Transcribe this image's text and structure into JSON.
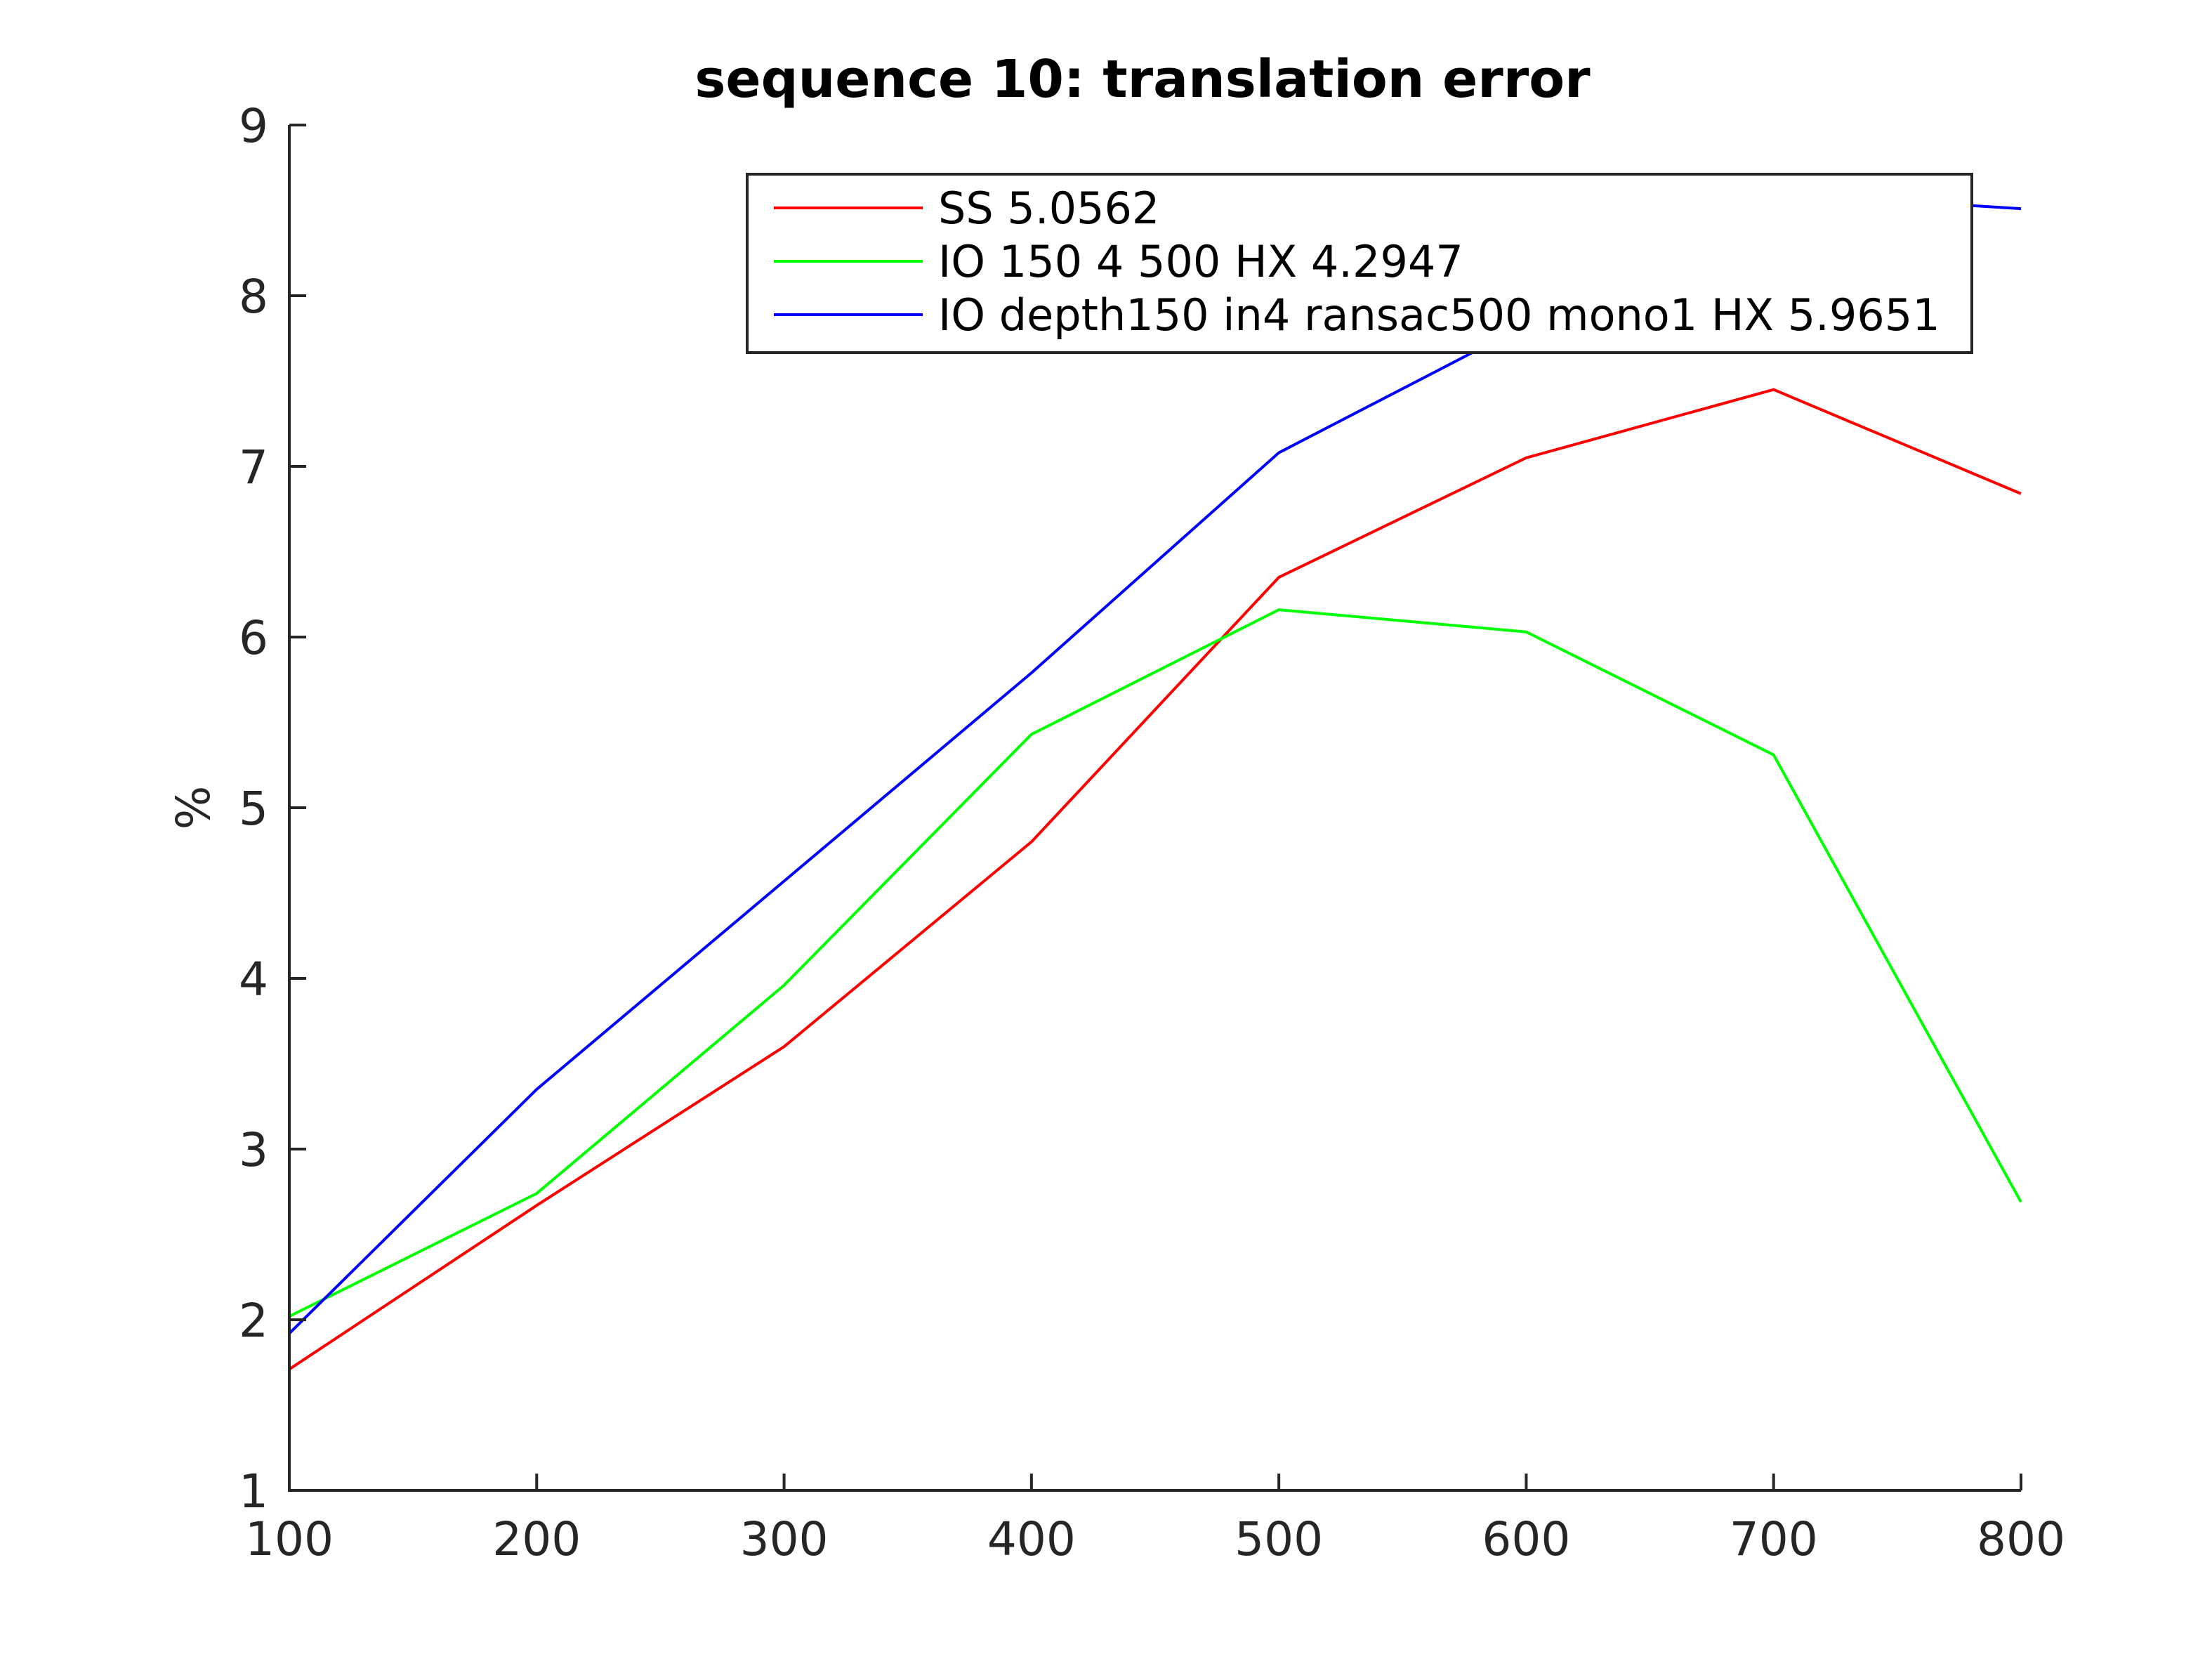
{
  "chart_data": {
    "type": "line",
    "title": "sequence 10: translation error",
    "xlabel": "",
    "ylabel": "%",
    "xlim": [
      100,
      800
    ],
    "ylim": [
      1,
      9
    ],
    "xticks": [
      100,
      200,
      300,
      400,
      500,
      600,
      700,
      800
    ],
    "yticks": [
      1,
      2,
      3,
      4,
      5,
      6,
      7,
      8,
      9
    ],
    "grid": false,
    "legend_position": "top-right",
    "x": [
      100,
      200,
      300,
      400,
      500,
      600,
      700,
      800
    ],
    "series": [
      {
        "name": "SS 5.0562",
        "color": "#ff0000",
        "values": [
          1.71,
          2.67,
          3.6,
          4.8,
          6.35,
          7.05,
          7.45,
          6.84
        ]
      },
      {
        "name": "IO 150 4 500 HX 4.2947",
        "color": "#00ff00",
        "values": [
          2.02,
          2.74,
          3.96,
          5.43,
          6.16,
          6.03,
          5.31,
          2.69
        ]
      },
      {
        "name": "IO depth150 in4 ransac500 mono1 HX 5.9651",
        "color": "#0000ff",
        "values": [
          1.92,
          3.35,
          4.57,
          5.79,
          7.08,
          7.83,
          8.6,
          8.51
        ]
      }
    ]
  }
}
